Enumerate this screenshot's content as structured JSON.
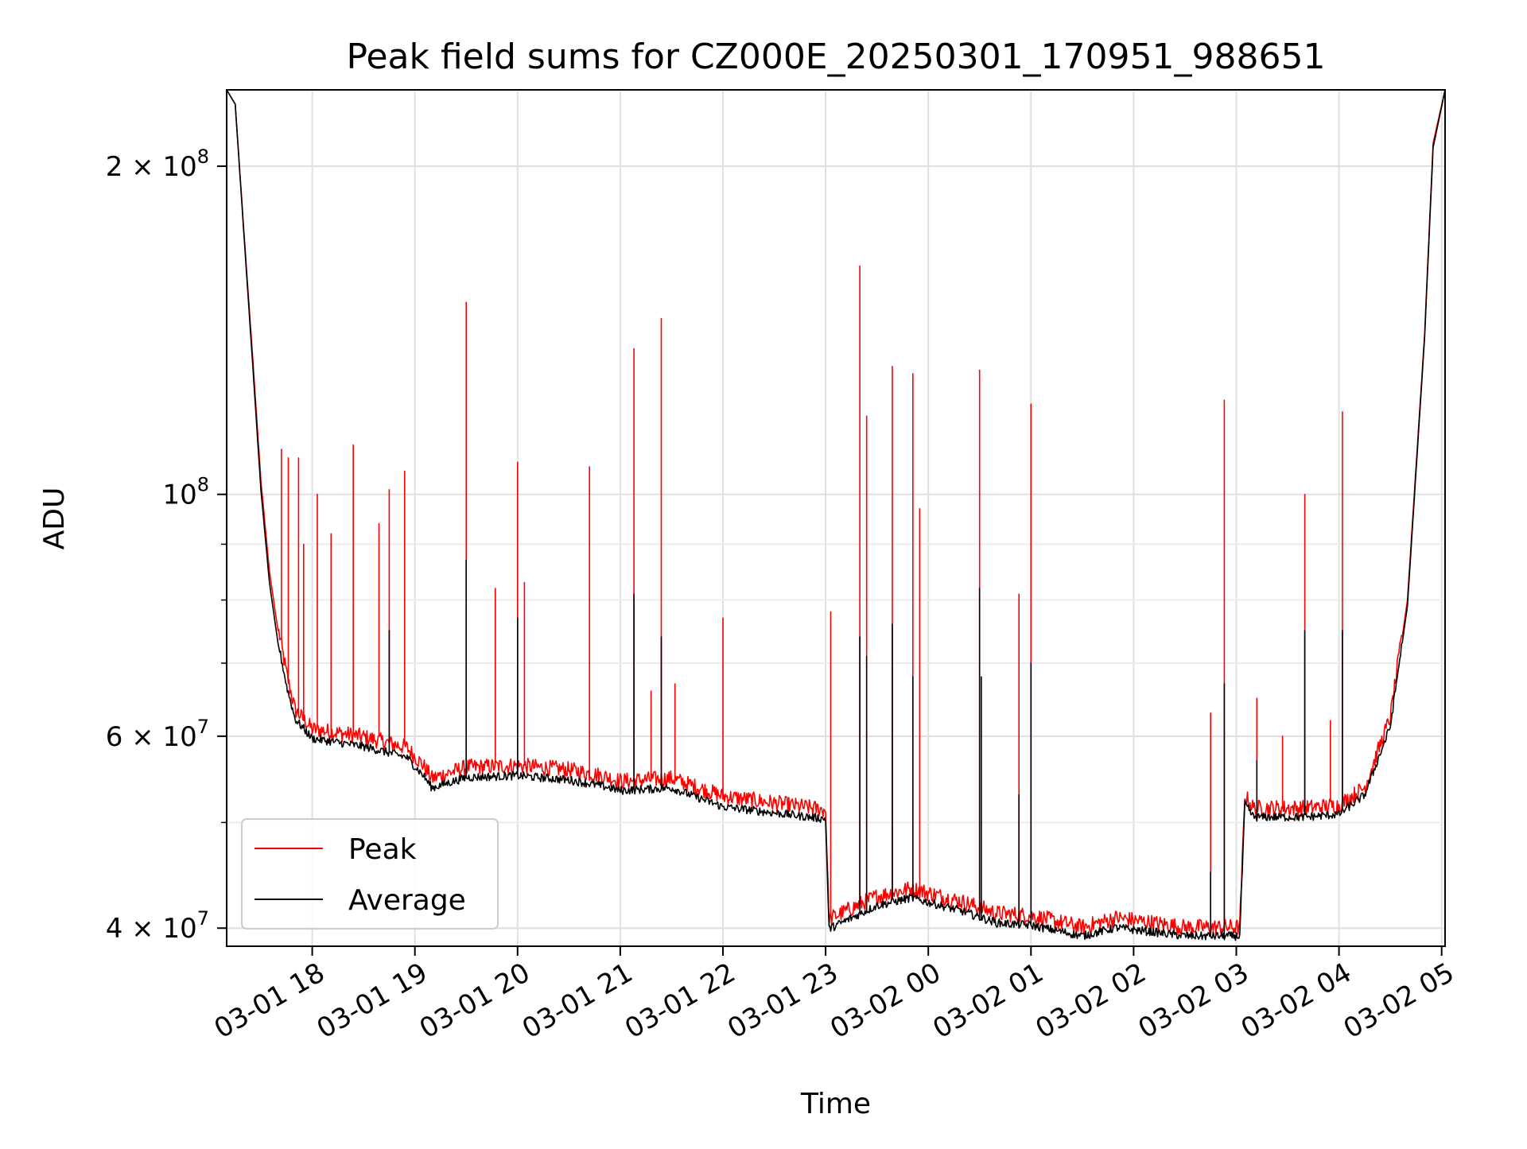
{
  "chart_data": {
    "type": "line",
    "title": "Peak field sums for CZ000E_20250301_170951_988651",
    "xlabel": "Time",
    "ylabel": "ADU",
    "yscale": "log",
    "xlim": [
      "2025-03-01 17:10",
      "2025-03-02 05:02"
    ],
    "ylim": [
      38500000,
      235000000
    ],
    "grid": true,
    "legend_position": "lower-left",
    "x_ticks": [
      {
        "value": "2025-03-01 18:00",
        "label": "03-01 18"
      },
      {
        "value": "2025-03-01 19:00",
        "label": "03-01 19"
      },
      {
        "value": "2025-03-01 20:00",
        "label": "03-01 20"
      },
      {
        "value": "2025-03-01 21:00",
        "label": "03-01 21"
      },
      {
        "value": "2025-03-01 22:00",
        "label": "03-01 22"
      },
      {
        "value": "2025-03-01 23:00",
        "label": "03-01 23"
      },
      {
        "value": "2025-03-02 00:00",
        "label": "03-02 00"
      },
      {
        "value": "2025-03-02 01:00",
        "label": "03-02 01"
      },
      {
        "value": "2025-03-02 02:00",
        "label": "03-02 02"
      },
      {
        "value": "2025-03-02 03:00",
        "label": "03-02 03"
      },
      {
        "value": "2025-03-02 04:00",
        "label": "03-02 04"
      },
      {
        "value": "2025-03-02 05:00",
        "label": "03-02 05"
      }
    ],
    "y_ticks": [
      {
        "value": 40000000,
        "label": "4 × 10",
        "exp": "7"
      },
      {
        "value": 60000000,
        "label": "6 × 10",
        "exp": "7"
      },
      {
        "value": 100000000,
        "label": "10",
        "exp": "8"
      },
      {
        "value": 200000000,
        "label": "2 × 10",
        "exp": "8"
      }
    ],
    "series": [
      {
        "name": "Peak",
        "color": "#ff0000",
        "baseline": [
          [
            "2025-03-01 17:10",
            235000000
          ],
          [
            "2025-03-01 17:15",
            228000000
          ],
          [
            "2025-03-01 17:20",
            175000000
          ],
          [
            "2025-03-01 17:25",
            135000000
          ],
          [
            "2025-03-01 17:30",
            103000000
          ],
          [
            "2025-03-01 17:35",
            85000000
          ],
          [
            "2025-03-01 17:40",
            75000000
          ],
          [
            "2025-03-01 17:45",
            68000000
          ],
          [
            "2025-03-01 17:50",
            63000000
          ],
          [
            "2025-03-01 18:00",
            60500000
          ],
          [
            "2025-03-01 18:30",
            59500000
          ],
          [
            "2025-03-01 18:55",
            58200000
          ],
          [
            "2025-03-01 19:05",
            56000000
          ],
          [
            "2025-03-01 19:10",
            54500000
          ],
          [
            "2025-03-01 19:30",
            55800000
          ],
          [
            "2025-03-01 20:00",
            56000000
          ],
          [
            "2025-03-01 20:30",
            55500000
          ],
          [
            "2025-03-01 20:50",
            54800000
          ],
          [
            "2025-03-01 21:00",
            54200000
          ],
          [
            "2025-03-01 21:30",
            54500000
          ],
          [
            "2025-03-01 22:00",
            52500000
          ],
          [
            "2025-03-01 23:00",
            51000000
          ],
          [
            "2025-03-01 23:02",
            40500000
          ],
          [
            "2025-03-01 23:30",
            42500000
          ],
          [
            "2025-03-01 23:50",
            43200000
          ],
          [
            "2025-03-02 00:20",
            42000000
          ],
          [
            "2025-03-02 00:40",
            41000000
          ],
          [
            "2025-03-02 01:00",
            40800000
          ],
          [
            "2025-03-02 01:30",
            39800000
          ],
          [
            "2025-03-02 01:50",
            40600000
          ],
          [
            "2025-03-02 02:30",
            39800000
          ],
          [
            "2025-03-02 03:02",
            39800000
          ],
          [
            "2025-03-02 03:05",
            52500000
          ],
          [
            "2025-03-02 03:10",
            51200000
          ],
          [
            "2025-03-02 03:40",
            51200000
          ],
          [
            "2025-03-02 04:00",
            51500000
          ],
          [
            "2025-03-02 04:15",
            53500000
          ],
          [
            "2025-03-02 04:30",
            62000000
          ],
          [
            "2025-03-02 04:40",
            80000000
          ],
          [
            "2025-03-02 04:50",
            140000000
          ],
          [
            "2025-03-02 04:55",
            210000000
          ],
          [
            "2025-03-02 05:02",
            235000000
          ]
        ],
        "spikes": [
          [
            "2025-03-01 17:42",
            110000000
          ],
          [
            "2025-03-01 17:46",
            108000000
          ],
          [
            "2025-03-01 17:52",
            108000000
          ],
          [
            "2025-03-01 17:55",
            90000000
          ],
          [
            "2025-03-01 18:03",
            100000000
          ],
          [
            "2025-03-01 18:11",
            92000000
          ],
          [
            "2025-03-01 18:24",
            111000000
          ],
          [
            "2025-03-01 18:39",
            94000000
          ],
          [
            "2025-03-01 18:45",
            101000000
          ],
          [
            "2025-03-01 18:54",
            105000000
          ],
          [
            "2025-03-01 19:30",
            150000000
          ],
          [
            "2025-03-01 19:47",
            82000000
          ],
          [
            "2025-03-01 20:00",
            107000000
          ],
          [
            "2025-03-01 20:04",
            83000000
          ],
          [
            "2025-03-01 20:42",
            106000000
          ],
          [
            "2025-03-01 21:08",
            136000000
          ],
          [
            "2025-03-01 21:18",
            66000000
          ],
          [
            "2025-03-01 21:24",
            145000000
          ],
          [
            "2025-03-01 21:32",
            67000000
          ],
          [
            "2025-03-01 22:00",
            77000000
          ],
          [
            "2025-03-01 23:03",
            78000000
          ],
          [
            "2025-03-01 23:20",
            162000000
          ],
          [
            "2025-03-01 23:24",
            118000000
          ],
          [
            "2025-03-01 23:39",
            131000000
          ],
          [
            "2025-03-01 23:51",
            129000000
          ],
          [
            "2025-03-01 23:55",
            97000000
          ],
          [
            "2025-03-02 00:30",
            130000000
          ],
          [
            "2025-03-02 00:53",
            81000000
          ],
          [
            "2025-03-02 01:00",
            121000000
          ],
          [
            "2025-03-02 02:45",
            63000000
          ],
          [
            "2025-03-02 02:53",
            122000000
          ],
          [
            "2025-03-02 03:12",
            65000000
          ],
          [
            "2025-03-02 03:27",
            60000000
          ],
          [
            "2025-03-02 03:40",
            100000000
          ],
          [
            "2025-03-02 03:55",
            62000000
          ],
          [
            "2025-03-02 04:02",
            119000000
          ]
        ]
      },
      {
        "name": "Average",
        "color": "#000000",
        "baseline": [
          [
            "2025-03-01 17:10",
            235000000
          ],
          [
            "2025-03-01 17:15",
            228000000
          ],
          [
            "2025-03-01 17:20",
            174000000
          ],
          [
            "2025-03-01 17:25",
            133000000
          ],
          [
            "2025-03-01 17:30",
            101000000
          ],
          [
            "2025-03-01 17:35",
            83000000
          ],
          [
            "2025-03-01 17:40",
            73000000
          ],
          [
            "2025-03-01 17:45",
            66500000
          ],
          [
            "2025-03-01 17:50",
            62000000
          ],
          [
            "2025-03-01 18:00",
            59500000
          ],
          [
            "2025-03-01 18:30",
            58500000
          ],
          [
            "2025-03-01 18:55",
            57200000
          ],
          [
            "2025-03-01 19:05",
            55000000
          ],
          [
            "2025-03-01 19:10",
            53600000
          ],
          [
            "2025-03-01 19:30",
            54800000
          ],
          [
            "2025-03-01 20:00",
            55000000
          ],
          [
            "2025-03-01 20:30",
            54500000
          ],
          [
            "2025-03-01 20:50",
            53800000
          ],
          [
            "2025-03-01 21:00",
            53300000
          ],
          [
            "2025-03-01 21:30",
            53600000
          ],
          [
            "2025-03-01 22:00",
            51500000
          ],
          [
            "2025-03-01 23:00",
            50200000
          ],
          [
            "2025-03-01 23:02",
            39800000
          ],
          [
            "2025-03-01 23:30",
            41800000
          ],
          [
            "2025-03-01 23:50",
            42500000
          ],
          [
            "2025-03-02 00:20",
            41300000
          ],
          [
            "2025-03-02 00:40",
            40300000
          ],
          [
            "2025-03-02 01:00",
            40100000
          ],
          [
            "2025-03-02 01:30",
            39200000
          ],
          [
            "2025-03-02 01:50",
            39900000
          ],
          [
            "2025-03-02 02:30",
            39200000
          ],
          [
            "2025-03-02 03:02",
            39200000
          ],
          [
            "2025-03-02 03:05",
            51800000
          ],
          [
            "2025-03-02 03:10",
            50400000
          ],
          [
            "2025-03-02 03:40",
            50400000
          ],
          [
            "2025-03-02 04:00",
            50700000
          ],
          [
            "2025-03-02 04:15",
            52800000
          ],
          [
            "2025-03-02 04:30",
            61000000
          ],
          [
            "2025-03-02 04:40",
            79000000
          ],
          [
            "2025-03-02 04:50",
            139000000
          ],
          [
            "2025-03-02 04:55",
            208000000
          ],
          [
            "2025-03-02 05:02",
            235000000
          ]
        ],
        "spikes": [
          [
            "2025-03-01 17:42",
            70000000
          ],
          [
            "2025-03-01 18:45",
            75000000
          ],
          [
            "2025-03-01 19:30",
            87000000
          ],
          [
            "2025-03-01 20:00",
            77000000
          ],
          [
            "2025-03-01 21:08",
            81000000
          ],
          [
            "2025-03-01 21:24",
            74000000
          ],
          [
            "2025-03-01 23:20",
            74000000
          ],
          [
            "2025-03-01 23:24",
            71000000
          ],
          [
            "2025-03-01 23:39",
            76000000
          ],
          [
            "2025-03-01 23:51",
            68000000
          ],
          [
            "2025-03-02 00:30",
            82000000
          ],
          [
            "2025-03-02 00:31",
            68000000
          ],
          [
            "2025-03-02 00:53",
            53000000
          ],
          [
            "2025-03-02 01:00",
            70000000
          ],
          [
            "2025-03-02 02:45",
            45000000
          ],
          [
            "2025-03-02 02:53",
            67000000
          ],
          [
            "2025-03-02 03:12",
            57000000
          ],
          [
            "2025-03-02 03:40",
            75000000
          ],
          [
            "2025-03-02 04:02",
            75000000
          ]
        ]
      }
    ]
  }
}
